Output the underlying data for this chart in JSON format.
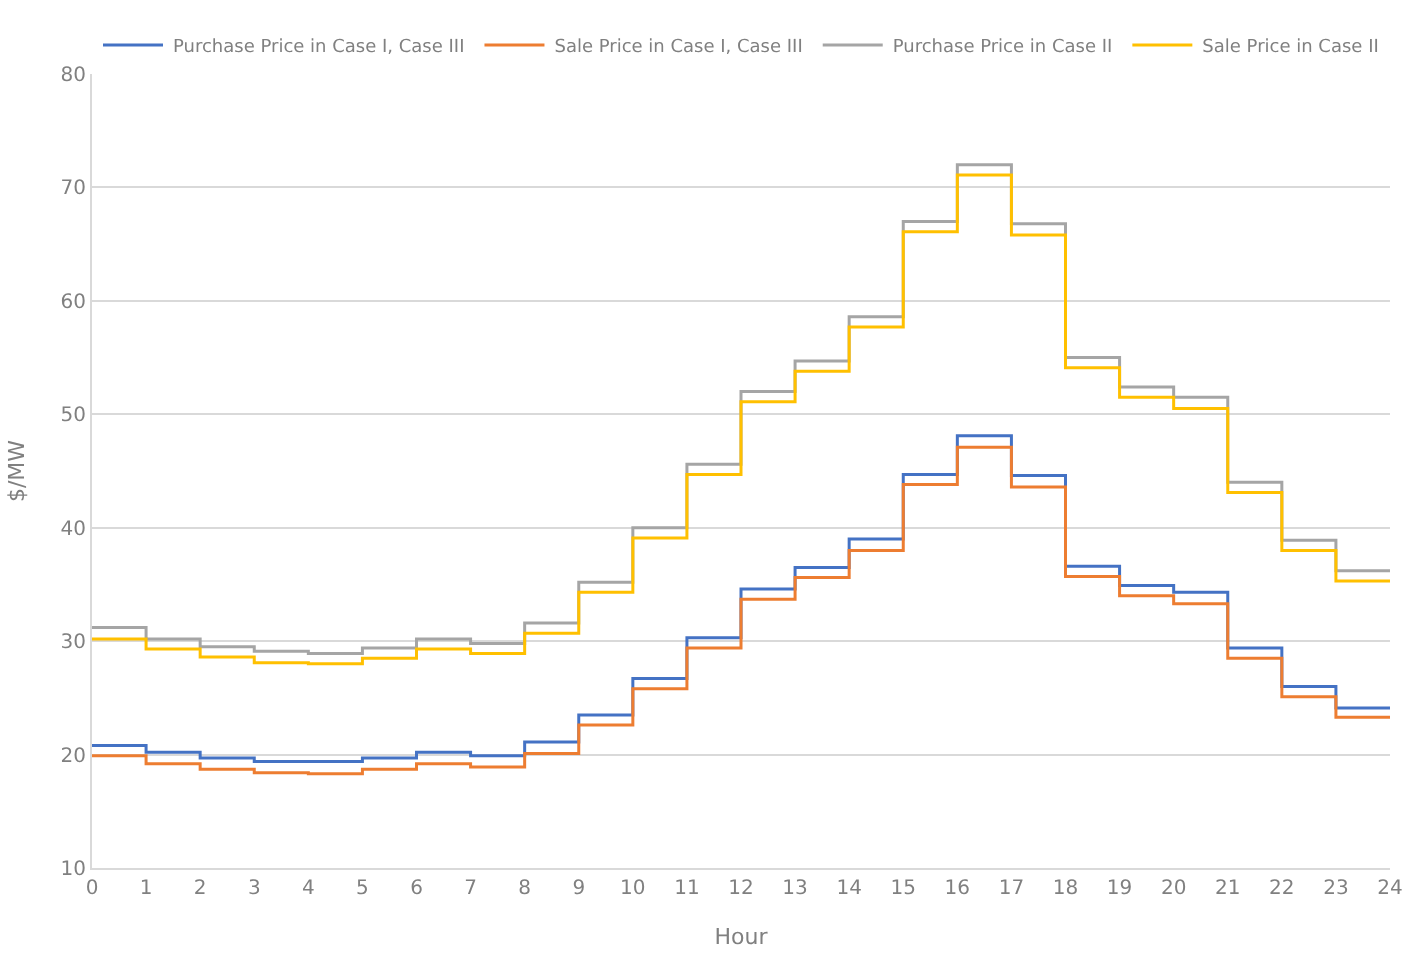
{
  "chart_data": {
    "type": "step",
    "xlabel": "Hour",
    "ylabel": "$/MW",
    "x": [
      0,
      1,
      2,
      3,
      4,
      5,
      6,
      7,
      8,
      9,
      10,
      11,
      12,
      13,
      14,
      15,
      16,
      17,
      18,
      19,
      20,
      21,
      22,
      23,
      24
    ],
    "series": [
      {
        "name": "Purchase Price in Case I, Case III",
        "color": "#4472c4",
        "values": [
          20.8,
          20.2,
          19.7,
          19.4,
          19.4,
          19.7,
          20.2,
          19.9,
          21.1,
          23.5,
          26.7,
          30.3,
          34.6,
          36.5,
          39.0,
          44.7,
          48.1,
          44.6,
          36.6,
          34.9,
          34.3,
          29.4,
          26.0,
          24.1,
          24.1
        ]
      },
      {
        "name": "Sale Price in Case I, Case III",
        "color": "#ed7d31",
        "values": [
          19.9,
          19.2,
          18.7,
          18.4,
          18.3,
          18.7,
          19.2,
          18.9,
          20.1,
          22.6,
          25.8,
          29.4,
          33.7,
          35.6,
          38.0,
          43.8,
          47.1,
          43.6,
          35.7,
          34.0,
          33.3,
          28.5,
          25.1,
          23.3,
          23.3
        ]
      },
      {
        "name": "Purchase Price in Case II",
        "color": "#a5a5a5",
        "values": [
          31.2,
          30.2,
          29.5,
          29.1,
          28.9,
          29.4,
          30.2,
          29.8,
          31.6,
          35.2,
          40.0,
          45.6,
          52.0,
          54.7,
          58.6,
          67.0,
          72.0,
          66.8,
          55.0,
          52.4,
          51.5,
          44.0,
          38.9,
          36.2,
          36.2
        ]
      },
      {
        "name": "Sale Price in Case II",
        "color": "#ffc000",
        "values": [
          30.2,
          29.3,
          28.6,
          28.1,
          28.0,
          28.5,
          29.3,
          28.9,
          30.7,
          34.3,
          39.1,
          44.7,
          51.1,
          53.8,
          57.7,
          66.1,
          71.1,
          65.8,
          54.1,
          51.5,
          50.5,
          43.1,
          38.0,
          35.3,
          35.3
        ]
      }
    ],
    "xlim": [
      0,
      24
    ],
    "xticks": [
      0,
      1,
      2,
      3,
      4,
      5,
      6,
      7,
      8,
      9,
      10,
      11,
      12,
      13,
      14,
      15,
      16,
      17,
      18,
      19,
      20,
      21,
      22,
      23,
      24
    ],
    "ylim": [
      10,
      80
    ],
    "yticks": [
      10,
      20,
      30,
      40,
      50,
      60,
      70,
      80
    ],
    "grid": "y",
    "legend": "top",
    "marker": "none",
    "line_style": "solid"
  }
}
